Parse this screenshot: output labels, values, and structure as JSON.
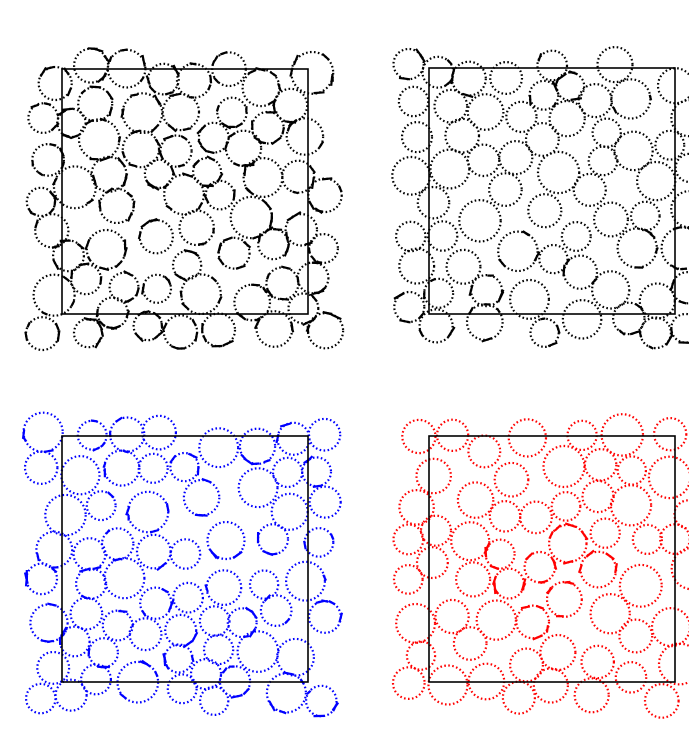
{
  "figure": {
    "panels": [
      {
        "id": "top-left",
        "color": "#000000",
        "circle_dash_weight": 2.6,
        "contact_density": 6,
        "contact_mode": "dense"
      },
      {
        "id": "top-right",
        "color": "#000000",
        "circle_dash_weight": 1.4,
        "contact_density": 2,
        "contact_mode": "sparse-top-bottom"
      },
      {
        "id": "bottom-left",
        "color": "#0000ff",
        "circle_dash_weight": 1.4,
        "contact_density": 4,
        "contact_mode": "scattered"
      },
      {
        "id": "bottom-right",
        "color": "#ff0000",
        "circle_dash_weight": 1.0,
        "contact_density": 1,
        "contact_mode": "center-chain"
      }
    ]
  }
}
